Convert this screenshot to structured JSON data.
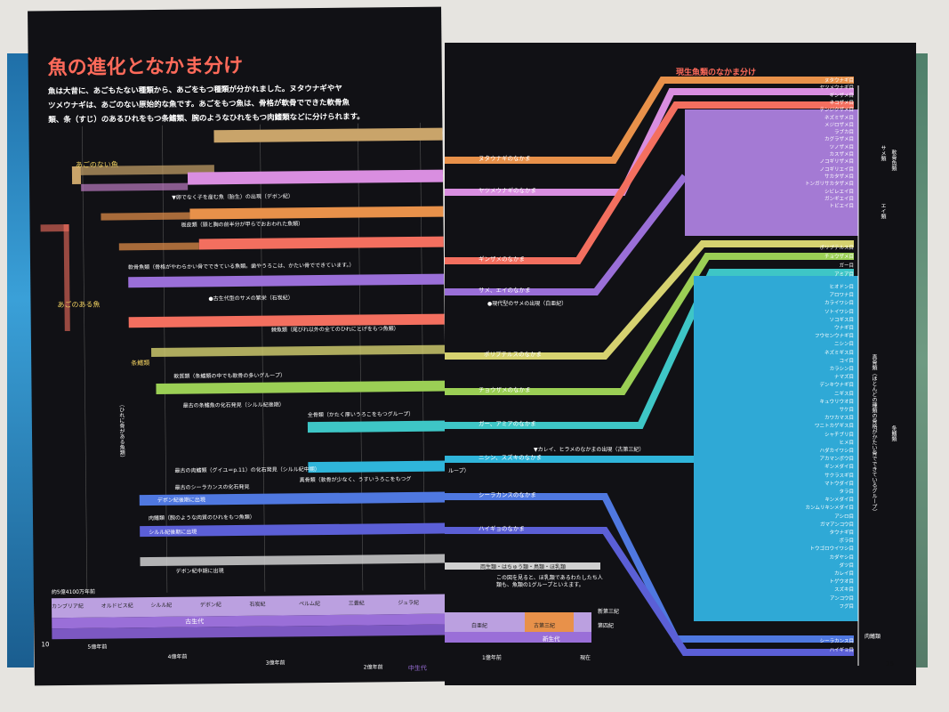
{
  "left": {
    "title": "魚の進化となかま分け",
    "intro": [
      "魚は大昔に、あごもたない種類から、あごをもつ種類が分かれました。ヌタウナギやヤ",
      "ツメウナギは、あごのない原始的な魚です。あごをもつ魚は、骨格が軟骨でできた軟骨魚",
      "類、条（すじ）のあるひれをもつ条鰭類、腕のようなひれをもつ肉鰭類などに分けられます。"
    ],
    "labels": {
      "jawless": "あごのない魚",
      "jawed": "あごのある魚",
      "cartilaginous": "軟骨魚類（骨格がやわらかい骨でできている魚類。歯やうろこは、かたい骨でできています。）",
      "cartilage_fossil": "●古生代型のサメの繁栄（石炭紀）",
      "acanth": "棘魚類（尾びれ以外の全てのひれにとげをもつ魚類）",
      "placoderm": "板皮類（頭と胸の前半分が甲らでおおわれた魚類）",
      "jaw_appear": "▼卵でなく子を産む魚（胎生）の出現（デボン紀）",
      "actino": "条鰭類",
      "chondrostei": "軟質類（条鰭類の中でも軟骨の多いグループ）",
      "oldest_actino": "最古の条鰭魚の化石発見（シルル紀後期）",
      "holostei": "全骨類（かたく厚いうろこをもつグループ）",
      "teleost": "真骨類（軟骨が少なく、うすいうろこをもつグ",
      "oldest_sarco": "最古の肉鰭類（グイユ＝p.11）の化石発見（シルル紀中期）",
      "coelacanth_fossil": "最古のシーラカンスの化石発見",
      "devonian1": "デボン紀後期に出現",
      "sarco": "肉鰭類（腕のような肉質のひれをもつ魚類）",
      "silurian": "シルル紀後期に出現",
      "devonian2": "デボン紀中期に出現",
      "side_label": "（ひれに骨がある魚類）",
      "page_num": "10"
    },
    "timeline": {
      "ago": "約5億4100万年前",
      "periods": [
        "カンブリア紀",
        "オルドビス紀",
        "シルル紀",
        "デボン紀",
        "石炭紀",
        "ペルム紀",
        "三畳紀",
        "ジュラ紀"
      ],
      "era": "古生代",
      "era2": "中生代",
      "ticks": [
        "5億年前",
        "4億年前",
        "3億年前",
        "2億年前"
      ]
    }
  },
  "right": {
    "title": "現生魚類のなかま分け",
    "groups": [
      "ヌタウナギのなかま",
      "ヤツメウナギのなかま",
      "ギンザメのなかま",
      "サメ、エイのなかま",
      "ポリプテルスのなかま",
      "チョウザメのなかま",
      "ガー、アミアのなかま",
      "ニシン、スズキのなかま",
      "シーラカンスのなかま",
      "ハイギョのなかま"
    ],
    "notes": {
      "shark_modern": "●現代型のサメの出現（白亜紀）",
      "flatfish": "▼カレイ、ヒラメのなかまの出現（古第三紀）",
      "tetrapod": "両生類・はちゅう類・鳥類・ほ乳類",
      "tetrapod_note": "この図を見ると、ほ乳類であるわたしたち人類も、魚類の1グループといえます。",
      "loop": "ループ）"
    },
    "orders_shark": [
      "ヌタウナギ目",
      "ヤツメウナギ目",
      "ギンザメ目",
      "ネコザメ目",
      "テンジクザメ目",
      "ネズミザメ目",
      "メジロザメ目",
      "ラブカ目",
      "カグラザメ目",
      "ツノザメ目",
      "カスザメ目",
      "ノコギリザメ目",
      "ノコギリエイ目",
      "サカタザメ目",
      "トンガリサカタザメ目",
      "シビレエイ目",
      "ガンギエイ目",
      "トビエイ目"
    ],
    "orders_mid": [
      "ポリプテルス目",
      "チョウザメ目",
      "ガー目",
      "アミア目"
    ],
    "orders_teleost": [
      "ヒオドン目",
      "アロワナ目",
      "カライワシ目",
      "ソトイワシ目",
      "ソコギス目",
      "ウナギ目",
      "フウセンウナギ目",
      "ニシン目",
      "ネズミギス目",
      "コイ目",
      "カラシン目",
      "ナマズ目",
      "デンキウナギ目",
      "ニギス目",
      "キュウリウオ目",
      "サケ目",
      "カワカマス目",
      "ワニトカゲギス目",
      "シャチブリ目",
      "ヒメ目",
      "ハダカイワシ目",
      "アカマンボウ目",
      "ギンメダイ目",
      "サクラスギ目",
      "マトウダイ目",
      "タラ目",
      "キンメダイ目",
      "カンムリキンメダイ目",
      "アシロ目",
      "ガマアンコウ目",
      "タウナギ目",
      "ボラ目",
      "トウゴロウイワシ目",
      "カダヤシ目",
      "ダツ目",
      "カレイ目",
      "トゲウオ目",
      "スズキ目",
      "アンコウ目",
      "フグ目"
    ],
    "orders_last": [
      "シーラカンス目",
      "ハイギョ目"
    ],
    "side": {
      "shark": "サメ類",
      "ray": "エイ類",
      "cart": "軟骨魚類",
      "teleost": "真骨類（ほとんどの種類の骨格がかたい骨でできているグループ）",
      "actino": "条鰭類",
      "sarco": "肉鰭類"
    },
    "timeline": {
      "periods": [
        "白亜紀",
        "古第三紀",
        "新第三紀",
        "第四紀"
      ],
      "era": "新生代",
      "tick": "1億年前",
      "now": "現在"
    },
    "page_num": "15"
  },
  "colors": {
    "orange": "#e8914a",
    "tan": "#c9a46a",
    "pink": "#d98ee0",
    "red": "#f36f5f",
    "violet": "#9a6fd8",
    "yellow": "#d6d270",
    "green": "#9bcf55",
    "teal": "#3ec6c6",
    "cyan": "#2fb5da",
    "blue": "#4f78e0",
    "indigo": "#5b5fd6",
    "sky": "#2fa9d6"
  }
}
